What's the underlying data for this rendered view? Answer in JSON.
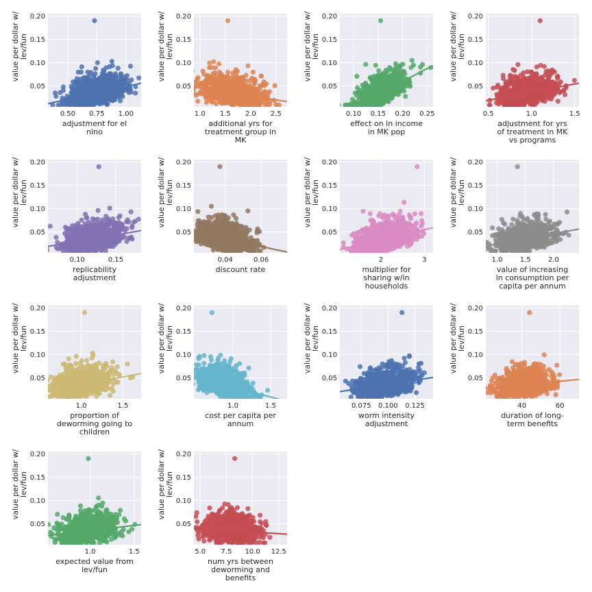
{
  "chart_data": [
    {
      "type": "scatter",
      "color": "#4c72b0",
      "xlabel": [
        "adjustment for el",
        "nino"
      ],
      "xticks": [
        0.5,
        0.75,
        1.0
      ],
      "xtick_labels": [
        "0.50",
        "0.75",
        "1.00"
      ],
      "xlim": [
        0.33,
        1.13
      ],
      "x_center": 0.75,
      "x_spread": 0.12,
      "slope": 0.055,
      "ylabel": [
        "value per dollar w/",
        "lev/fun"
      ],
      "yticks": [
        0.05,
        0.1,
        0.15,
        0.2
      ],
      "ytick_labels": [
        "0.05",
        "0.10",
        "0.15",
        "0.20"
      ],
      "ylim": [
        0.005,
        0.205
      ],
      "grid": true,
      "fit_line": true,
      "max_point": [
        0.73,
        0.19
      ],
      "peak_y": 0.16
    },
    {
      "type": "scatter",
      "color": "#dd8452",
      "xlabel": [
        "additional yrs for",
        "treatment group in",
        "MK"
      ],
      "xticks": [
        1.0,
        1.5,
        2.0,
        2.5
      ],
      "xtick_labels": [
        "1.0",
        "1.5",
        "2.0",
        "2.5"
      ],
      "xlim": [
        0.88,
        2.72
      ],
      "x_center": 1.62,
      "x_spread": 0.3,
      "slope": -0.017,
      "ylabel": [
        "value per dollar w/",
        "lev/fun"
      ],
      "yticks": [
        0.05,
        0.1,
        0.15,
        0.2
      ],
      "ytick_labels": [
        "0.05",
        "0.10",
        "0.15",
        "0.20"
      ],
      "ylim": [
        0.005,
        0.205
      ],
      "grid": true,
      "fit_line": true,
      "max_point": [
        1.55,
        0.19
      ],
      "peak_y": 0.16
    },
    {
      "type": "scatter",
      "color": "#55a868",
      "xlabel": [
        "effect on ln income",
        "in MK pop"
      ],
      "xticks": [
        0.1,
        0.15,
        0.2,
        0.25
      ],
      "xtick_labels": [
        "0.10",
        "0.15",
        "0.20",
        "0.25"
      ],
      "xlim": [
        0.072,
        0.262
      ],
      "x_center": 0.155,
      "x_spread": 0.025,
      "slope": 0.55,
      "ylabel": [
        "value per dollar w/",
        "lev/fun"
      ],
      "yticks": [
        0.05,
        0.1,
        0.15,
        0.2
      ],
      "ytick_labels": [
        "0.05",
        "0.10",
        "0.15",
        "0.20"
      ],
      "ylim": [
        0.005,
        0.205
      ],
      "grid": true,
      "fit_line": true,
      "max_point": [
        0.155,
        0.19
      ],
      "peak_y": 0.16
    },
    {
      "type": "scatter",
      "color": "#c44e52",
      "xlabel": [
        "adjustment for yrs",
        "of treatment in MK",
        "vs programs"
      ],
      "xticks": [
        0.5,
        1.0,
        1.5
      ],
      "xtick_labels": [
        "0.5",
        "1.0",
        "1.5"
      ],
      "xlim": [
        0.47,
        1.55
      ],
      "x_center": 0.95,
      "x_spread": 0.16,
      "slope": 0.035,
      "ylabel": [
        "value per dollar w/",
        "lev/fun"
      ],
      "yticks": [
        0.05,
        0.1,
        0.15,
        0.2
      ],
      "ytick_labels": [
        "0.05",
        "0.10",
        "0.15",
        "0.20"
      ],
      "ylim": [
        0.005,
        0.205
      ],
      "grid": true,
      "fit_line": true,
      "max_point": [
        1.1,
        0.19
      ],
      "peak_y": 0.16
    },
    {
      "type": "scatter",
      "color": "#8172b3",
      "xlabel": [
        "replicability",
        "adjustment"
      ],
      "xticks": [
        0.1,
        0.15
      ],
      "xtick_labels": [
        "0.10",
        "0.15"
      ],
      "xlim": [
        0.062,
        0.183
      ],
      "x_center": 0.12,
      "x_spread": 0.018,
      "slope": 0.28,
      "ylabel": [
        "value per dollar w/",
        "lev/fun"
      ],
      "yticks": [
        0.05,
        0.1,
        0.15,
        0.2
      ],
      "ytick_labels": [
        "0.05",
        "0.10",
        "0.15",
        "0.20"
      ],
      "ylim": [
        0.005,
        0.205
      ],
      "grid": true,
      "fit_line": true,
      "max_point": [
        0.128,
        0.19
      ],
      "peak_y": 0.16
    },
    {
      "type": "scatter",
      "color": "#937860",
      "xlabel": [
        "discount rate"
      ],
      "xticks": [
        0.04,
        0.06
      ],
      "xtick_labels": [
        "0.04",
        "0.06"
      ],
      "xlim": [
        0.0225,
        0.0745
      ],
      "x_center": 0.04,
      "x_spread": 0.008,
      "slope": -0.82,
      "ylabel": [
        "value per dollar w/",
        "lev/fun"
      ],
      "yticks": [
        0.05,
        0.1,
        0.15,
        0.2
      ],
      "ytick_labels": [
        "0.05",
        "0.10",
        "0.15",
        "0.20"
      ],
      "ylim": [
        0.005,
        0.205
      ],
      "grid": true,
      "fit_line": true,
      "max_point": [
        0.037,
        0.19
      ],
      "peak_y": 0.16
    },
    {
      "type": "scatter",
      "color": "#da8bc3",
      "xlabel": [
        "multiplier for",
        "sharing w/in",
        "households"
      ],
      "xticks": [
        2,
        3
      ],
      "xtick_labels": [
        "2",
        "3"
      ],
      "xlim": [
        1.05,
        3.2
      ],
      "x_center": 2.1,
      "x_spread": 0.35,
      "slope": 0.022,
      "ylabel": [
        "value per dollar w/",
        "lev/fun"
      ],
      "yticks": [
        0.05,
        0.1,
        0.15,
        0.2
      ],
      "ytick_labels": [
        "0.05",
        "0.10",
        "0.15",
        "0.20"
      ],
      "ylim": [
        0.005,
        0.205
      ],
      "grid": true,
      "fit_line": true,
      "max_point": [
        2.83,
        0.19
      ],
      "peak_y": 0.16
    },
    {
      "type": "scatter",
      "color": "#8c8c8c",
      "xlabel": [
        "value of increasing",
        "ln consumption per",
        "capita per annum"
      ],
      "xticks": [
        1.0,
        1.5,
        2.0
      ],
      "xtick_labels": [
        "1.0",
        "1.5",
        "2.0"
      ],
      "xlim": [
        0.8,
        2.45
      ],
      "x_center": 1.5,
      "x_spread": 0.25,
      "slope": 0.022,
      "ylabel": [
        "value per dollar w/",
        "lev/fun"
      ],
      "yticks": [
        0.05,
        0.1,
        0.15,
        0.2
      ],
      "ytick_labels": [
        "0.05",
        "0.10",
        "0.15",
        "0.20"
      ],
      "ylim": [
        0.005,
        0.205
      ],
      "grid": true,
      "fit_line": true,
      "max_point": [
        1.36,
        0.19
      ],
      "peak_y": 0.16
    },
    {
      "type": "scatter",
      "color": "#ccb974",
      "xlabel": [
        "proportion of",
        "deworming going to",
        "children"
      ],
      "xticks": [
        1.0,
        1.5
      ],
      "xtick_labels": [
        "1.0",
        "1.5"
      ],
      "xlim": [
        0.6,
        1.72
      ],
      "x_center": 1.02,
      "x_spread": 0.17,
      "slope": 0.035,
      "ylabel": [
        "value per dollar w/",
        "lev/fun"
      ],
      "yticks": [
        0.05,
        0.1,
        0.15,
        0.2
      ],
      "ytick_labels": [
        "0.05",
        "0.10",
        "0.15",
        "0.20"
      ],
      "ylim": [
        0.005,
        0.205
      ],
      "grid": true,
      "fit_line": true,
      "max_point": [
        1.04,
        0.19
      ],
      "peak_y": 0.16
    },
    {
      "type": "scatter",
      "color": "#64b5cd",
      "xlabel": [
        "cost per capita per",
        "annum"
      ],
      "xticks": [
        1.0,
        1.5
      ],
      "xtick_labels": [
        "1.0",
        "1.5"
      ],
      "xlim": [
        0.48,
        1.72
      ],
      "x_center": 0.88,
      "x_spread": 0.17,
      "slope": -0.042,
      "ylabel": [
        "value per dollar w/",
        "lev/fun"
      ],
      "yticks": [
        0.05,
        0.1,
        0.15,
        0.2
      ],
      "ytick_labels": [
        "0.05",
        "0.10",
        "0.15",
        "0.20"
      ],
      "ylim": [
        0.005,
        0.205
      ],
      "grid": true,
      "fit_line": true,
      "max_point": [
        0.72,
        0.19
      ],
      "peak_y": 0.16
    },
    {
      "type": "scatter",
      "color": "#4c72b0",
      "xlabel": [
        "worm intensity",
        "adjustment"
      ],
      "xticks": [
        0.075,
        0.1,
        0.125
      ],
      "xtick_labels": [
        "0.075",
        "0.100",
        "0.125"
      ],
      "xlim": [
        0.055,
        0.142
      ],
      "x_center": 0.097,
      "x_spread": 0.013,
      "slope": 0.35,
      "ylabel": [
        "value per dollar w/",
        "lev/fun"
      ],
      "yticks": [
        0.05,
        0.1,
        0.15,
        0.2
      ],
      "ytick_labels": [
        "0.05",
        "0.10",
        "0.15",
        "0.20"
      ],
      "ylim": [
        0.005,
        0.205
      ],
      "grid": true,
      "fit_line": true,
      "max_point": [
        0.113,
        0.19
      ],
      "peak_y": 0.16
    },
    {
      "type": "scatter",
      "color": "#dd8452",
      "xlabel": [
        "duration of long-",
        "term benefits"
      ],
      "xticks": [
        40,
        60
      ],
      "xtick_labels": [
        "40",
        "60"
      ],
      "xlim": [
        21,
        70
      ],
      "x_center": 41,
      "x_spread": 7,
      "slope": 0.0004,
      "ylabel": [
        "value per dollar w/",
        "lev/fun"
      ],
      "yticks": [
        0.05,
        0.1,
        0.15,
        0.2
      ],
      "ytick_labels": [
        "0.05",
        "0.10",
        "0.15",
        "0.20"
      ],
      "ylim": [
        0.005,
        0.205
      ],
      "grid": true,
      "fit_line": true,
      "max_point": [
        44,
        0.19
      ],
      "peak_y": 0.16
    },
    {
      "type": "scatter",
      "color": "#55a868",
      "xlabel": [
        "expected value from",
        "lev/fun"
      ],
      "xticks": [
        1.0,
        1.5
      ],
      "xtick_labels": [
        "1.0",
        "1.5"
      ],
      "xlim": [
        0.52,
        1.58
      ],
      "x_center": 0.98,
      "x_spread": 0.16,
      "slope": 0.022,
      "ylabel": [
        "value per dollar w/",
        "lev/fun"
      ],
      "yticks": [
        0.05,
        0.1,
        0.15,
        0.2
      ],
      "ytick_labels": [
        "0.05",
        "0.10",
        "0.15",
        "0.20"
      ],
      "ylim": [
        0.005,
        0.205
      ],
      "grid": true,
      "fit_line": true,
      "max_point": [
        0.98,
        0.19
      ],
      "peak_y": 0.16
    },
    {
      "type": "scatter",
      "color": "#c44e52",
      "xlabel": [
        "num yrs between",
        "deworming and",
        "benefits"
      ],
      "xticks": [
        5,
        7.5,
        10,
        12.5
      ],
      "xtick_labels": [
        "5.0",
        "7.5",
        "10.0",
        "12.5"
      ],
      "xlim": [
        4.4,
        13.3
      ],
      "x_center": 8.0,
      "x_spread": 1.3,
      "slope": -0.0014,
      "ylabel": [
        "value per dollar w/",
        "lev/fun"
      ],
      "yticks": [
        0.05,
        0.1,
        0.15,
        0.2
      ],
      "ytick_labels": [
        "0.05",
        "0.10",
        "0.15",
        "0.20"
      ],
      "ylim": [
        0.005,
        0.205
      ],
      "grid": true,
      "fit_line": true,
      "max_point": [
        8.3,
        0.19
      ],
      "peak_y": 0.16
    }
  ]
}
